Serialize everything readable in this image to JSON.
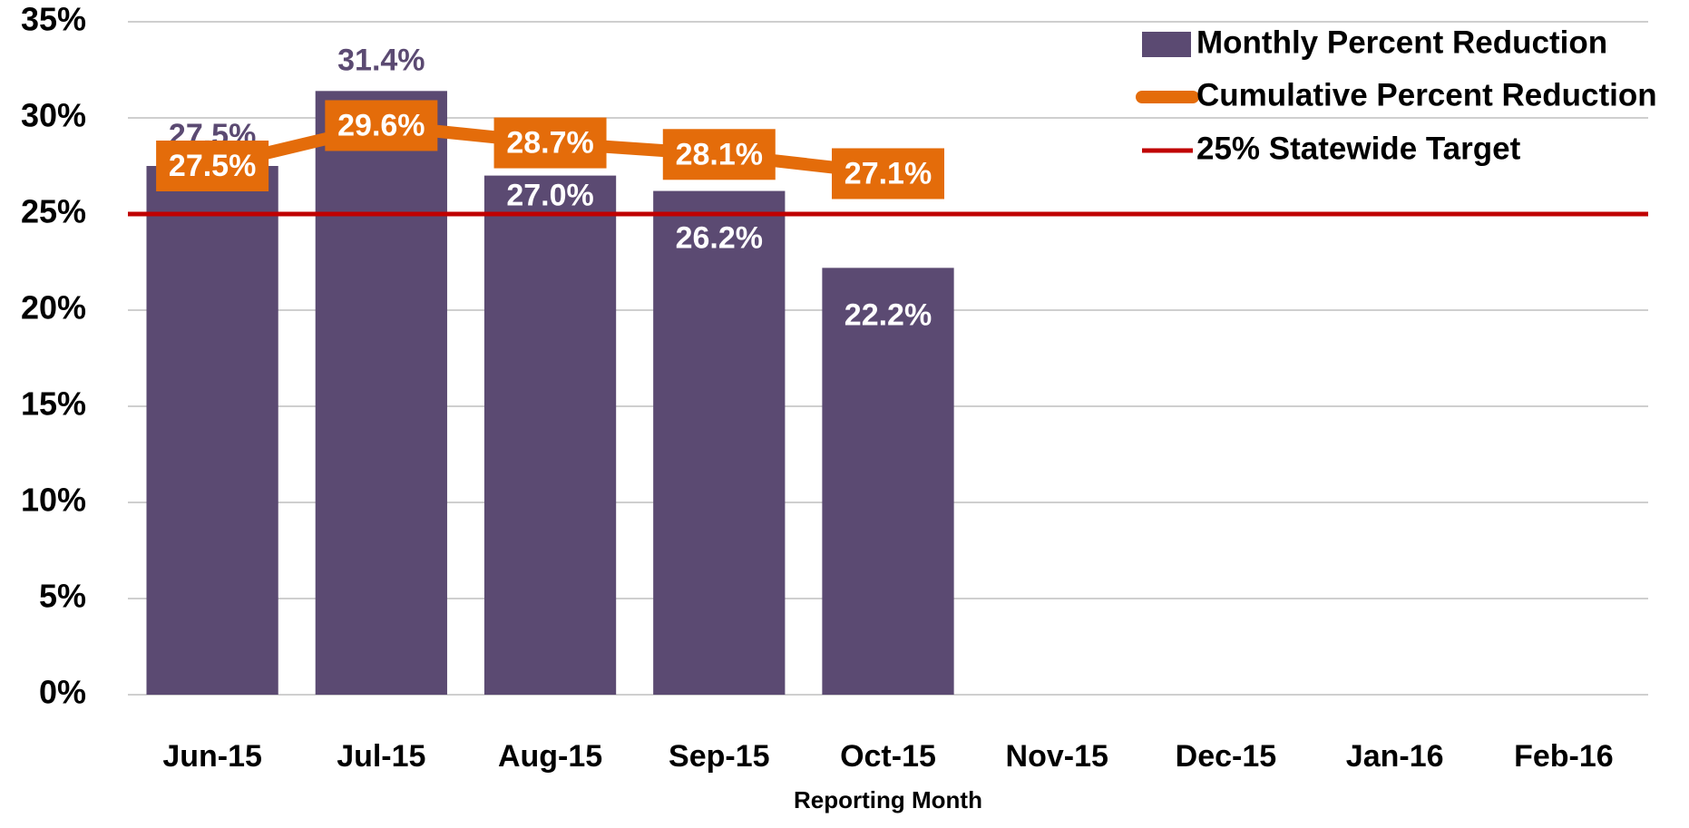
{
  "chart_data": {
    "type": "bar",
    "x_label": "Reporting Month",
    "categories": [
      "Jun-15",
      "Jul-15",
      "Aug-15",
      "Sep-15",
      "Oct-15",
      "Nov-15",
      "Dec-15",
      "Jan-16",
      "Feb-16"
    ],
    "series": [
      {
        "name": "Monthly Percent Reduction",
        "type": "bar",
        "color": "#5b4a72",
        "values": [
          27.5,
          31.4,
          27.0,
          26.2,
          22.2,
          null,
          null,
          null,
          null
        ],
        "value_labels": [
          "27.5%",
          "31.4%",
          "27.0%",
          "26.2%",
          "22.2%",
          null,
          null,
          null,
          null
        ]
      },
      {
        "name": "Cumulative Percent Reduction",
        "type": "line",
        "color": "#e46c0a",
        "values": [
          27.5,
          29.6,
          28.7,
          28.1,
          27.1,
          null,
          null,
          null,
          null
        ],
        "value_labels": [
          "27.5%",
          "29.6%",
          "28.7%",
          "28.1%",
          "27.1%",
          null,
          null,
          null,
          null
        ]
      }
    ],
    "reference_line": {
      "name": "25% Statewide Target",
      "value": 25,
      "color": "#c00000"
    },
    "ylim": [
      0,
      35
    ],
    "yticks": [
      {
        "value": 0,
        "label": "0%"
      },
      {
        "value": 5,
        "label": "5%"
      },
      {
        "value": 10,
        "label": "10%"
      },
      {
        "value": 15,
        "label": "15%"
      },
      {
        "value": 20,
        "label": "20%"
      },
      {
        "value": 25,
        "label": "25%"
      },
      {
        "value": 30,
        "label": "30%"
      },
      {
        "value": 35,
        "label": "35%"
      }
    ],
    "grid": true,
    "legend": "top-right"
  }
}
